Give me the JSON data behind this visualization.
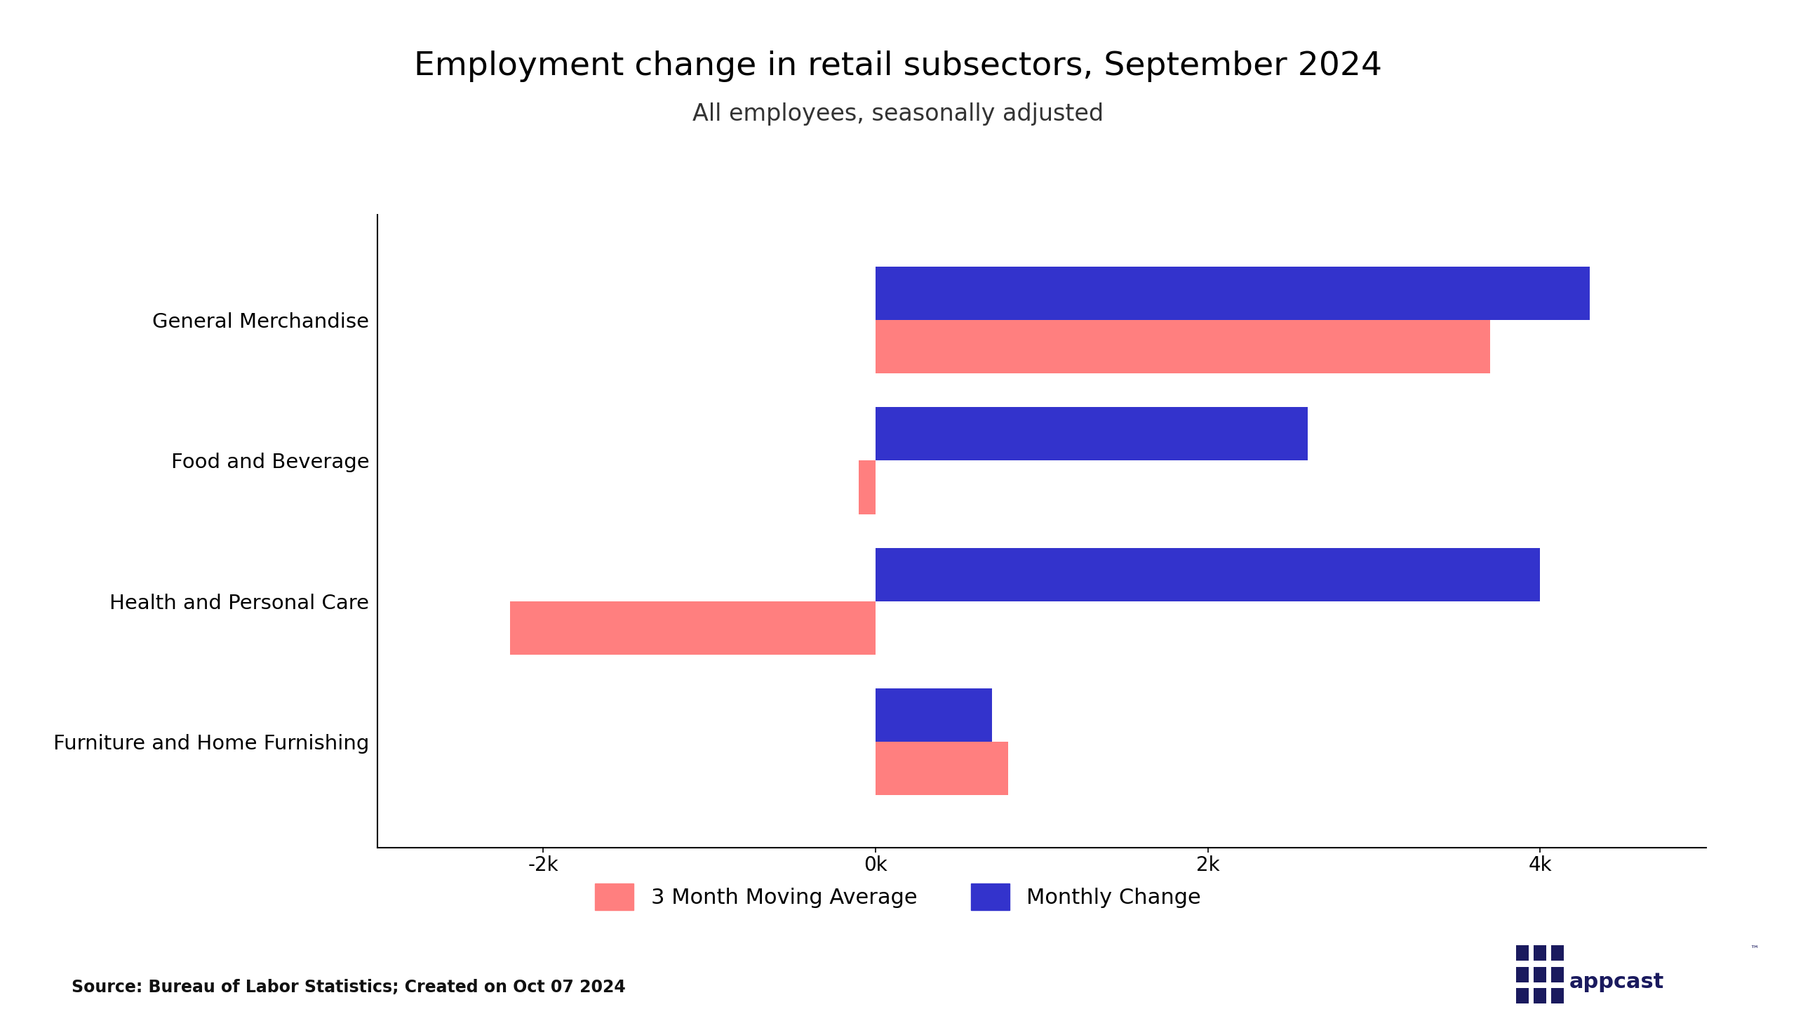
{
  "title": "Employment change in retail subsectors, September 2024",
  "subtitle": "All employees, seasonally adjusted",
  "source_text": "Source: Bureau of Labor Statistics; Created on Oct 07 2024",
  "categories": [
    "Furniture and Home Furnishing",
    "Health and Personal Care",
    "Food and Beverage",
    "General Merchandise"
  ],
  "monthly_change": [
    700,
    4000,
    2600,
    4300
  ],
  "moving_average": [
    800,
    -2200,
    -100,
    3700
  ],
  "bar_color_monthly": "#3333CC",
  "bar_color_moving": "#FF7F7F",
  "background_color": "#FFFFFF",
  "xlim": [
    -3000,
    5000
  ],
  "xtick_values": [
    -2000,
    0,
    2000,
    4000
  ],
  "xtick_labels": [
    "-2k",
    "0k",
    "2k",
    "4k"
  ],
  "legend_labels": [
    "3 Month Moving Average",
    "Monthly Change"
  ],
  "bar_height": 0.38,
  "title_fontsize": 34,
  "subtitle_fontsize": 24,
  "tick_fontsize": 20,
  "label_fontsize": 21,
  "legend_fontsize": 22,
  "source_fontsize": 17
}
